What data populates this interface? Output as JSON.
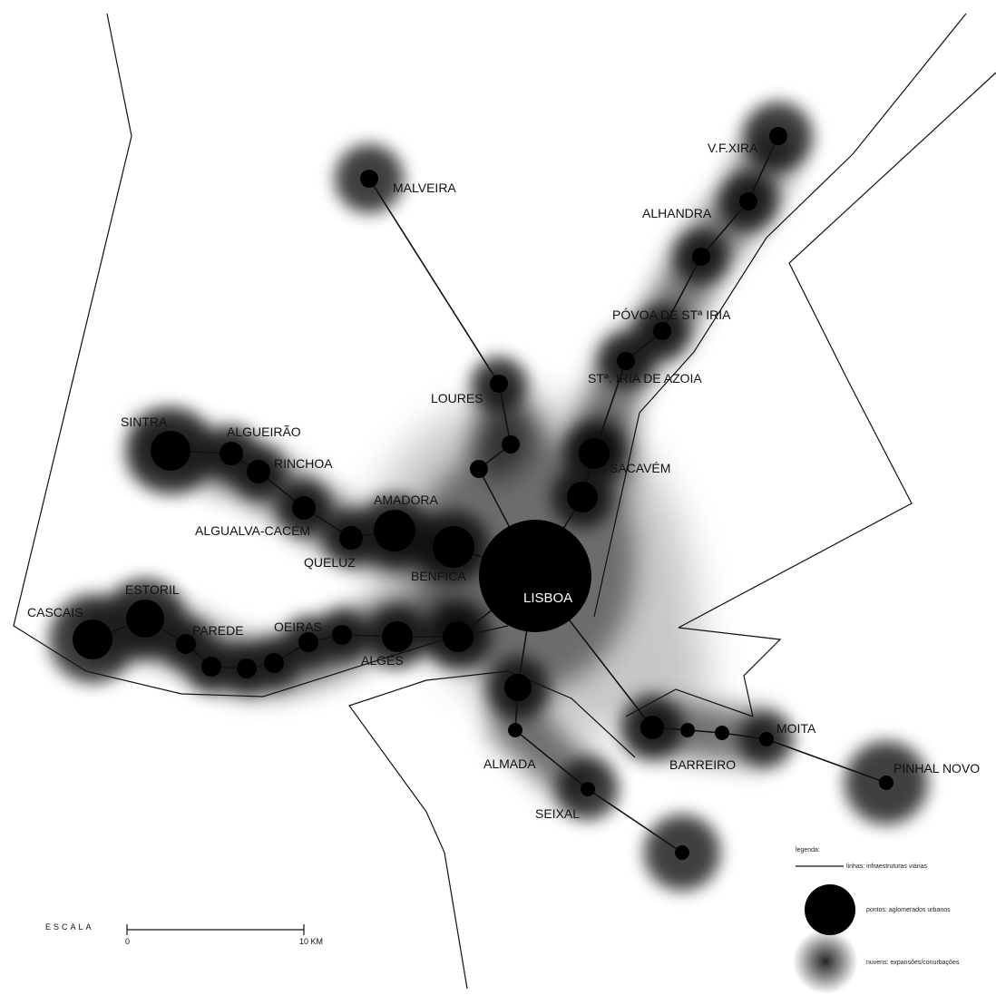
{
  "colors": {
    "ink": "#111111",
    "halo": "#000000",
    "background": "#ffffff"
  },
  "places": {
    "malveira": "MALVEIRA",
    "vfxira": "V.F.XIRA",
    "alhandra": "ALHANDRA",
    "povoa": "PÓVOA DE STª IRIA",
    "staIria": "STª. IRIA DE AZOIA",
    "loures": "LOURES",
    "sintra": "SINTRA",
    "algueirao": "ALGUEIRÃO",
    "rinchoa": "RINCHOA",
    "sacavem": "SACAVÉM",
    "amadora": "AMADORA",
    "cacem": "ALGUALVA-CACÉM",
    "queluz": "QUELUZ",
    "benfica": "BENFICA",
    "estoril": "ESTORIL",
    "cascais": "CASCAIS",
    "lisboa": "LISBOA",
    "parede": "PAREDE",
    "oeiras": "OEIRAS",
    "alges": "ALGÉS",
    "moita": "MOITA",
    "pinhalNovo": "PINHAL NOVO",
    "almada": "ALMADA",
    "barreiro": "BARREIRO",
    "seixal": "SEIXAL"
  },
  "legend": {
    "title": "legenda:",
    "lines": "linhas: infraestruturas viárias",
    "points": "pontos: aglomerados urbanos",
    "clouds": "nuvens: expansões/conurbações"
  },
  "scale": {
    "label": "ESCALA",
    "start": "0",
    "end": "10 KM"
  }
}
